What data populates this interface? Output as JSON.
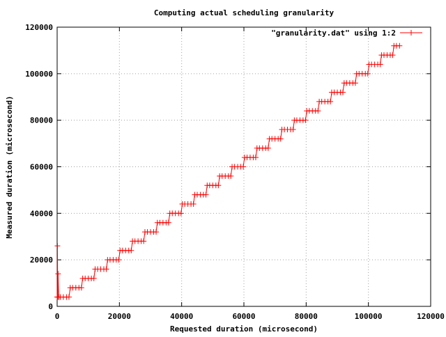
{
  "chart_data": {
    "type": "line",
    "title": "Computing actual scheduling granularity",
    "xlabel": "Requested duration (microsecond)",
    "ylabel": "Measured duration (microsecond)",
    "xlim": [
      0,
      120000
    ],
    "ylim": [
      0,
      120000
    ],
    "x_ticks": [
      0,
      20000,
      40000,
      60000,
      80000,
      100000,
      120000
    ],
    "y_ticks": [
      0,
      20000,
      40000,
      60000,
      80000,
      100000,
      120000
    ],
    "x_tick_labels": [
      "0",
      "20000",
      "40000",
      "60000",
      "80000",
      "100000",
      "120000"
    ],
    "y_tick_labels": [
      "0",
      "20000",
      "40000",
      "60000",
      "80000",
      "100000",
      "120000"
    ],
    "grid": true,
    "grid_style": "dotted",
    "legend_position": "top-right",
    "series": [
      {
        "name": "\"granularity.dat\" using 1:2",
        "color": "#ff0000",
        "marker": "plus",
        "line": true,
        "x": [
          0,
          100,
          200,
          300,
          500,
          1000,
          2000,
          3000,
          3800,
          4200,
          5000,
          6000,
          7000,
          7800,
          8200,
          9000,
          10000,
          11000,
          11800,
          12200,
          13000,
          14000,
          15000,
          15800,
          16200,
          17000,
          18000,
          19000,
          19800,
          20200,
          21000,
          22000,
          23000,
          23800,
          24200,
          25000,
          26000,
          27000,
          27800,
          28200,
          29000,
          30000,
          31000,
          31800,
          32200,
          33000,
          34000,
          35000,
          35800,
          36200,
          37000,
          38000,
          39000,
          39800,
          40200,
          41000,
          42000,
          43000,
          43800,
          44200,
          45000,
          46000,
          47000,
          47800,
          48200,
          49000,
          50000,
          51000,
          51800,
          52200,
          53000,
          54000,
          55000,
          55800,
          56200,
          57000,
          58000,
          59000,
          59800,
          60200,
          61000,
          62000,
          63000,
          63800,
          64200,
          65000,
          66000,
          67000,
          67800,
          68200,
          69000,
          70000,
          71000,
          71800,
          72200,
          73000,
          74000,
          75000,
          75800,
          76200,
          77000,
          78000,
          79000,
          79800,
          80200,
          81000,
          82000,
          83000,
          83800,
          84200,
          85000,
          86000,
          87000,
          87800,
          88200,
          89000,
          90000,
          91000,
          91800,
          92200,
          93000,
          94000,
          95000,
          95800,
          96200,
          97000,
          98000,
          99000,
          99800,
          100200,
          101000,
          102000,
          103000,
          103800,
          104200,
          105000,
          106000,
          107000,
          107800,
          108200,
          109000,
          110000
        ],
        "y": [
          4000,
          26000,
          4000,
          14000,
          4000,
          4000,
          4000,
          4000,
          4000,
          8000,
          8000,
          8000,
          8000,
          8000,
          12000,
          12000,
          12000,
          12000,
          12000,
          16000,
          16000,
          16000,
          16000,
          16000,
          20000,
          20000,
          20000,
          20000,
          20000,
          24000,
          24000,
          24000,
          24000,
          24000,
          28000,
          28000,
          28000,
          28000,
          28000,
          32000,
          32000,
          32000,
          32000,
          32000,
          36000,
          36000,
          36000,
          36000,
          36000,
          40000,
          40000,
          40000,
          40000,
          40000,
          44000,
          44000,
          44000,
          44000,
          44000,
          48000,
          48000,
          48000,
          48000,
          48000,
          52000,
          52000,
          52000,
          52000,
          52000,
          56000,
          56000,
          56000,
          56000,
          56000,
          60000,
          60000,
          60000,
          60000,
          60000,
          64000,
          64000,
          64000,
          64000,
          64000,
          68000,
          68000,
          68000,
          68000,
          68000,
          72000,
          72000,
          72000,
          72000,
          72000,
          76000,
          76000,
          76000,
          76000,
          76000,
          80000,
          80000,
          80000,
          80000,
          80000,
          84000,
          84000,
          84000,
          84000,
          84000,
          88000,
          88000,
          88000,
          88000,
          88000,
          92000,
          92000,
          92000,
          92000,
          92000,
          96000,
          96000,
          96000,
          96000,
          96000,
          100000,
          100000,
          100000,
          100000,
          100000,
          104000,
          104000,
          104000,
          104000,
          104000,
          108000,
          108000,
          108000,
          108000,
          108000,
          112000,
          112000,
          112000
        ]
      }
    ]
  }
}
